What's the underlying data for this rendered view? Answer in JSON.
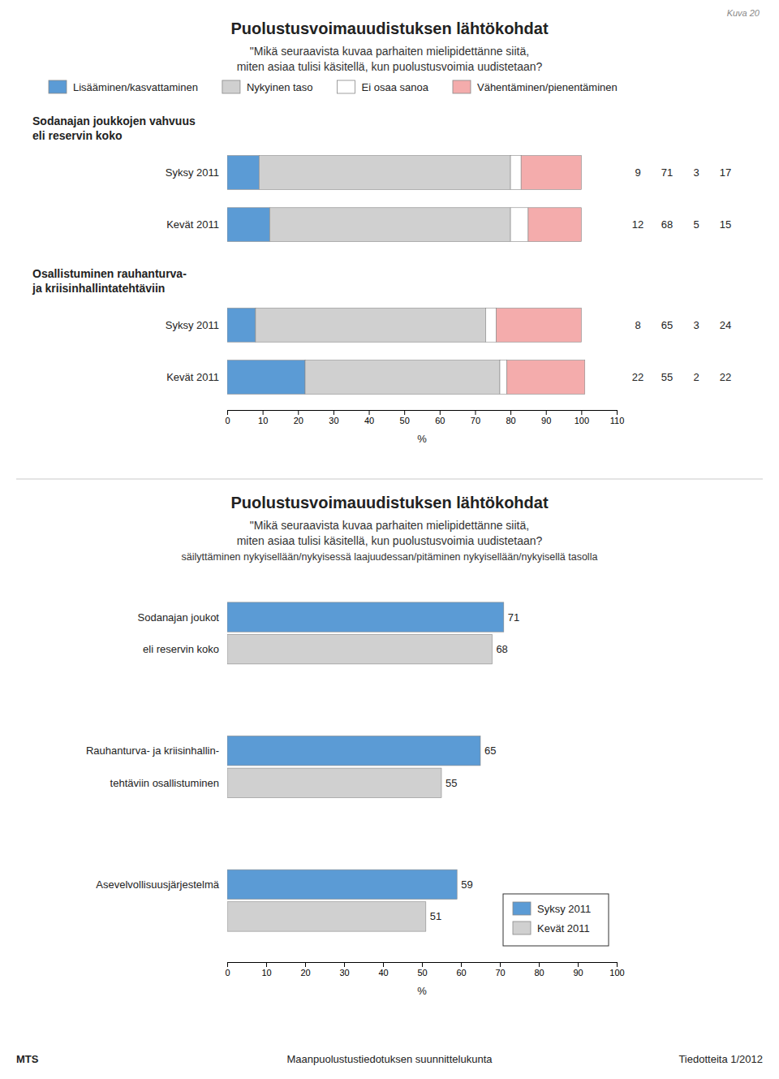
{
  "chart_data": [
    {
      "type": "bar",
      "orientation": "horizontal",
      "stacked": true,
      "title": "Puolustusvoimauudistuksen lähtökohdat",
      "subtitle": [
        "\"Mikä seuraavista kuvaa parhaiten mielipidettänne siitä,",
        "miten asiaa tulisi käsitellä, kun puolustusvoimia uudistetaan?"
      ],
      "annotations": [
        "Kuva 20"
      ],
      "group_labels": [
        [
          "Sodanajan joukkojen vahvuus",
          "eli reservin koko"
        ],
        [
          "Osallistuminen rauhanturva-",
          "ja kriisinhallintatehtäviin"
        ]
      ],
      "categories": [
        "Syksy 2011",
        "Kevät 2011",
        "Syksy 2011",
        "Kevät 2011"
      ],
      "series": [
        {
          "name": "Lisääminen/kasvattaminen",
          "color": "#5B9BD5",
          "values": [
            9,
            12,
            8,
            22
          ]
        },
        {
          "name": "Nykyinen taso",
          "color": "#D0D0D0",
          "values": [
            71,
            68,
            65,
            55
          ]
        },
        {
          "name": "Ei osaa sanoa",
          "color": "#FFFFFF",
          "values": [
            3,
            5,
            3,
            2
          ]
        },
        {
          "name": "Vähentäminen/pienentäminen",
          "color": "#F4ACAC",
          "values": [
            17,
            15,
            24,
            22
          ]
        }
      ],
      "xlim": [
        0,
        110
      ],
      "xticks": [
        0,
        10,
        20,
        30,
        40,
        50,
        60,
        70,
        80,
        90,
        100,
        110
      ],
      "xlabel": "%",
      "grid": false,
      "legend": "top",
      "data_labels": true
    },
    {
      "type": "bar",
      "orientation": "horizontal",
      "stacked": false,
      "title": "Puolustusvoimauudistuksen lähtökohdat",
      "subtitle": [
        "\"Mikä seuraavista kuvaa parhaiten mielipidettänne siitä,",
        "miten asiaa tulisi käsitellä, kun puolustusvoimia uudistetaan?",
        "säilyttäminen nykyisellään/nykyisessä laajuudessan/pitäminen nykyisellään/nykyisellä tasolla"
      ],
      "annotations": [
        "MTS",
        "Maanpuolustustiedotuksen suunnittelukunta",
        "Tiedotteita 1/2012"
      ],
      "categories": [
        [
          "Sodanajan joukot",
          "eli reservin koko"
        ],
        [
          "Rauhanturva- ja kriisinhallin-",
          "tehtäviin osallistuminen"
        ],
        [
          "Asevelvollisuusjärjestelmä"
        ]
      ],
      "series": [
        {
          "name": "Syksy 2011",
          "color": "#5B9BD5",
          "values": [
            71,
            65,
            59
          ]
        },
        {
          "name": "Kevät 2011",
          "color": "#D0D0D0",
          "values": [
            68,
            55,
            51
          ]
        }
      ],
      "xlim": [
        0,
        100
      ],
      "xticks": [
        0,
        10,
        20,
        30,
        40,
        50,
        60,
        70,
        80,
        90,
        100
      ],
      "xlabel": "%",
      "grid": false,
      "legend": "lower right",
      "data_labels": true
    }
  ]
}
